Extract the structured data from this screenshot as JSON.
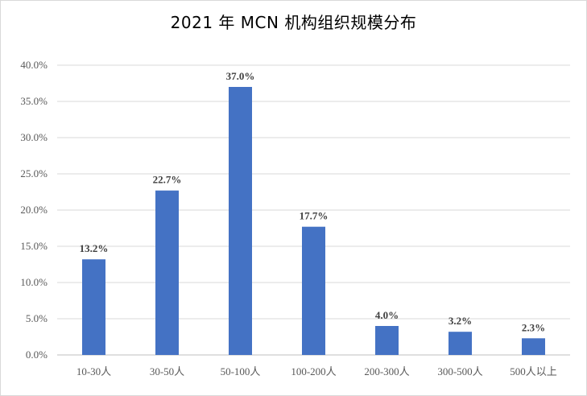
{
  "chart_data": {
    "type": "bar",
    "title": "2021 年 MCN 机构组织规模分布",
    "xlabel": "",
    "ylabel": "",
    "categories": [
      "10-30人",
      "30-50人",
      "50-100人",
      "100-200人",
      "200-300人",
      "300-500人",
      "500人以上"
    ],
    "values": [
      13.2,
      22.7,
      37.0,
      17.7,
      4.0,
      3.2,
      2.3
    ],
    "data_labels": [
      "13.2%",
      "22.7%",
      "37.0%",
      "17.7%",
      "4.0%",
      "3.2%",
      "2.3%"
    ],
    "ylim": [
      0,
      40
    ],
    "y_ticks": [
      0,
      5,
      10,
      15,
      20,
      25,
      30,
      35,
      40
    ],
    "y_tick_labels": [
      "0.0%",
      "5.0%",
      "10.0%",
      "15.0%",
      "20.0%",
      "25.0%",
      "30.0%",
      "35.0%",
      "40.0%"
    ],
    "grid": true,
    "legend": "none",
    "bar_color": "#4472C4"
  }
}
